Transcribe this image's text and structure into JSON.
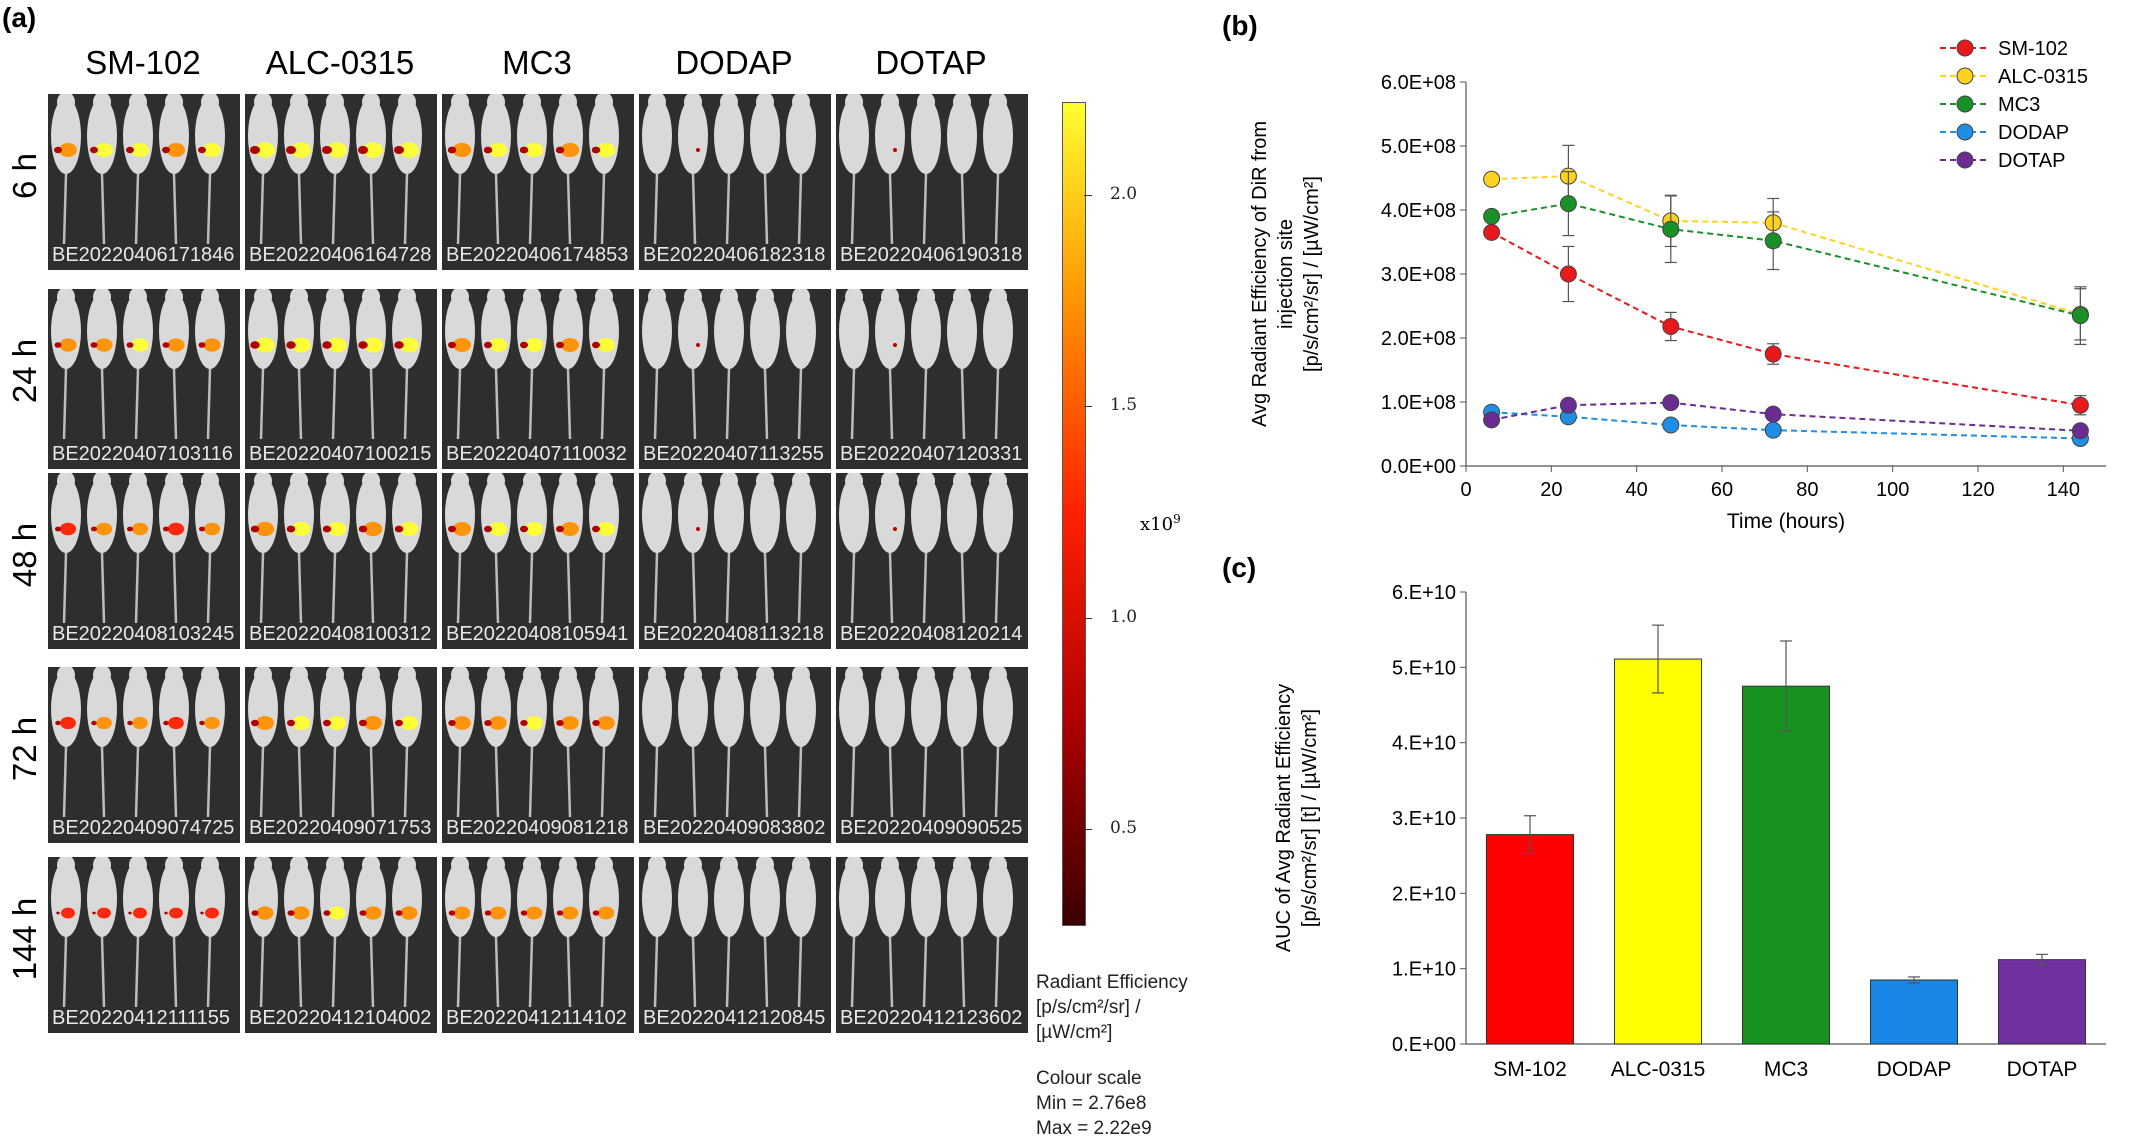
{
  "panel_a": {
    "label": "(a)",
    "columns": [
      "SM-102",
      "ALC-0315",
      "MC3",
      "DODAP",
      "DOTAP"
    ],
    "rows": [
      {
        "time": "6 h",
        "ids": [
          "BE20220406171846",
          "BE20220406164728",
          "BE20220406174853",
          "BE20220406182318",
          "BE20220406190318"
        ]
      },
      {
        "time": "24 h",
        "ids": [
          "BE20220407103116",
          "BE20220407100215",
          "BE20220407110032",
          "BE20220407113255",
          "BE20220407120331"
        ]
      },
      {
        "time": "48 h",
        "ids": [
          "BE20220408103245",
          "BE20220408100312",
          "BE20220408105941",
          "BE20220408113218",
          "BE20220408120214"
        ]
      },
      {
        "time": "72 h",
        "ids": [
          "BE20220409074725",
          "BE20220409071753",
          "BE20220409081218",
          "BE20220409083802",
          "BE20220409090525"
        ]
      },
      {
        "time": "144 h",
        "ids": [
          "BE20220412111155",
          "BE20220412104002",
          "BE20220412114102",
          "BE20220412120845",
          "BE20220412123602"
        ]
      }
    ],
    "signal_intensity": [
      [
        0.8,
        1.0,
        0.85,
        0.05,
        0.08
      ],
      [
        0.7,
        0.95,
        0.8,
        0.05,
        0.1
      ],
      [
        0.6,
        0.85,
        0.8,
        0.05,
        0.08
      ],
      [
        0.55,
        0.8,
        0.75,
        0.05,
        0.08
      ],
      [
        0.35,
        0.7,
        0.65,
        0.04,
        0.06
      ]
    ],
    "colorbar": {
      "ticks": [
        "2.0",
        "1.5",
        "1.0",
        "0.5"
      ],
      "tick_values": [
        2.0,
        1.5,
        1.0,
        0.5
      ],
      "range": [
        0.276,
        2.22
      ],
      "exponent": "x10",
      "exponent_power": "9",
      "caption_lines": [
        "Radiant Efficiency",
        "[p/s/cm²/sr] /",
        "[µW/cm²]"
      ],
      "scale_title": "Colour scale",
      "min_text": "Min = 2.76e8",
      "max_text": "Max = 2.22e9",
      "colors": [
        "#3a0000",
        "#b00000",
        "#ff2000",
        "#ff9000",
        "#ffff30"
      ]
    }
  },
  "chart_data": [
    {
      "panel": "(b)",
      "type": "line",
      "xlabel": "Time (hours)",
      "ylabel_lines": [
        "Avg Radiant Efficiency of DiR from",
        "injection site",
        "[p/s/cm²/sr] / [µW/cm²]"
      ],
      "x": [
        6,
        24,
        48,
        72,
        144
      ],
      "xlim": [
        0,
        150
      ],
      "ylim": [
        0,
        600000000
      ],
      "x_ticks": [
        0,
        20,
        40,
        60,
        80,
        100,
        120,
        140
      ],
      "y_ticks": [
        0,
        100000000,
        200000000,
        300000000,
        400000000,
        500000000,
        600000000
      ],
      "y_tick_labels": [
        "0.0E+00",
        "1.0E+08",
        "2.0E+08",
        "3.0E+08",
        "4.0E+08",
        "5.0E+08",
        "6.0E+08"
      ],
      "grid": false,
      "legend": "top-right",
      "series": [
        {
          "name": "SM-102",
          "color": "#e8191b",
          "values": [
            365000000,
            300000000,
            218000000,
            175000000,
            95000000
          ],
          "errors": [
            0,
            43000000,
            22000000,
            16000000,
            15000000
          ]
        },
        {
          "name": "ALC-0315",
          "color": "#ffd21f",
          "values": [
            448000000,
            453000000,
            383000000,
            380000000,
            237000000
          ],
          "errors": [
            0,
            48000000,
            40000000,
            38000000,
            40000000
          ]
        },
        {
          "name": "MC3",
          "color": "#1a9128",
          "values": [
            390000000,
            410000000,
            370000000,
            352000000,
            235000000
          ],
          "errors": [
            0,
            50000000,
            52000000,
            45000000,
            45000000
          ]
        },
        {
          "name": "DODAP",
          "color": "#1f8fe6",
          "values": [
            84000000,
            77000000,
            64000000,
            56000000,
            43000000
          ],
          "errors": [
            0,
            0,
            0,
            0,
            0
          ]
        },
        {
          "name": "DOTAP",
          "color": "#6a2c91",
          "values": [
            72000000,
            95000000,
            99000000,
            81000000,
            55000000
          ],
          "errors": [
            0,
            0,
            0,
            0,
            0
          ]
        }
      ]
    },
    {
      "panel": "(c)",
      "type": "bar",
      "categories": [
        "SM-102",
        "ALC-0315",
        "MC3",
        "DODAP",
        "DOTAP"
      ],
      "values": [
        27800000000,
        51100000000,
        47500000000,
        8500000000,
        11200000000
      ],
      "errors": [
        2500000000,
        4500000000,
        6000000000,
        400000000,
        700000000
      ],
      "colors": [
        "#ff0000",
        "#ffff00",
        "#17921f",
        "#1a86e6",
        "#7030a0"
      ],
      "ylabel_lines": [
        "AUC of Avg Radiant Efficiency",
        "[p/s/cm²/sr] [t] / [µW/cm²]"
      ],
      "xlabel": "",
      "ylim": [
        0,
        60000000000
      ],
      "y_ticks": [
        0,
        10000000000,
        20000000000,
        30000000000,
        40000000000,
        50000000000,
        60000000000
      ],
      "y_tick_labels": [
        "0.E+00",
        "1.E+10",
        "2.E+10",
        "3.E+10",
        "4.E+10",
        "5.E+10",
        "6.E+10"
      ]
    }
  ]
}
